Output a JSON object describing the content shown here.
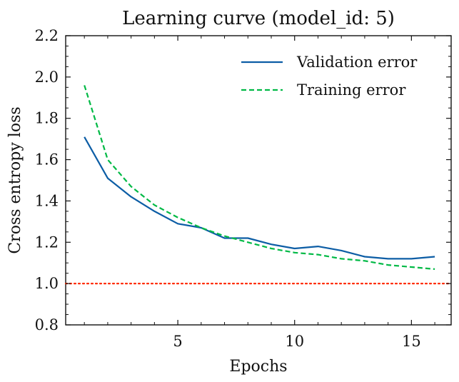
{
  "chart_data": {
    "type": "line",
    "title": "Learning curve (model_id: 5)",
    "xlabel": "Epochs",
    "ylabel": "Cross entropy loss",
    "xlim": [
      0.2,
      16.7
    ],
    "ylim": [
      0.8,
      2.2
    ],
    "xticks": [
      5,
      10,
      15
    ],
    "yticks": [
      0.8,
      1.0,
      1.2,
      1.4,
      1.6,
      1.8,
      2.0,
      2.2
    ],
    "xtick_labels": [
      "5",
      "10",
      "15"
    ],
    "ytick_labels": [
      "0.8",
      "1.0",
      "1.2",
      "1.4",
      "1.6",
      "1.8",
      "2.0",
      "2.2"
    ],
    "x": [
      1,
      2,
      3,
      4,
      5,
      6,
      7,
      8,
      9,
      10,
      11,
      12,
      13,
      14,
      15,
      16
    ],
    "series": [
      {
        "name": "Validation error",
        "color": "#0c5da5",
        "style": "solid",
        "values": [
          1.71,
          1.51,
          1.42,
          1.35,
          1.29,
          1.27,
          1.22,
          1.22,
          1.19,
          1.17,
          1.18,
          1.16,
          1.13,
          1.12,
          1.12,
          1.13
        ]
      },
      {
        "name": "Training error",
        "color": "#00b945",
        "style": "dashed",
        "values": [
          1.96,
          1.6,
          1.47,
          1.38,
          1.32,
          1.27,
          1.23,
          1.2,
          1.17,
          1.15,
          1.14,
          1.12,
          1.11,
          1.09,
          1.08,
          1.07
        ]
      }
    ],
    "reference_line": {
      "y": 1.0,
      "color": "#ff2c00",
      "style": "dotted"
    },
    "grid": false,
    "legend_position": "top-right"
  }
}
